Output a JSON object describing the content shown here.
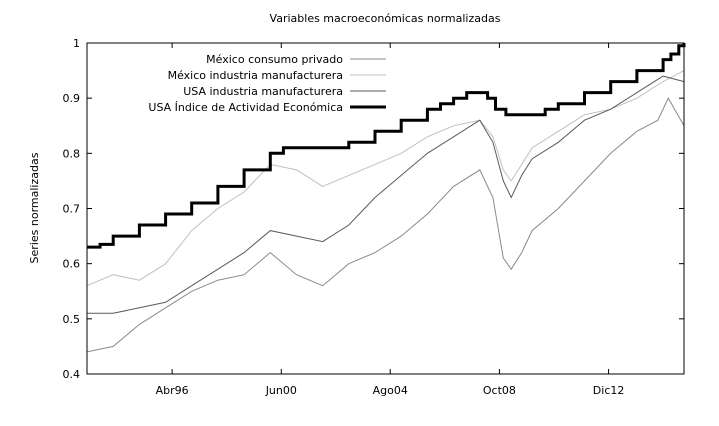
{
  "chart_data": {
    "type": "line",
    "title": "Variables macroeconómicas normalizadas",
    "xlabel": "",
    "ylabel": "Series normalizadas",
    "xlim": [
      1993.0,
      2015.8
    ],
    "ylim": [
      0.4,
      1.0
    ],
    "x_ticks": [
      {
        "label": "Abr96",
        "value": 1996.25
      },
      {
        "label": "Jun00",
        "value": 2000.42
      },
      {
        "label": "Ago04",
        "value": 2004.58
      },
      {
        "label": "Oct08",
        "value": 2008.75
      },
      {
        "label": "Dic12",
        "value": 2012.92
      }
    ],
    "y_ticks": [
      0.4,
      0.5,
      0.6,
      0.7,
      0.8,
      0.9,
      1.0
    ],
    "grid": false,
    "legend_position": "top-left",
    "series": [
      {
        "name": "México consumo privado",
        "color": "#8a8a8a",
        "stroke_width": 1,
        "x": [
          1993.0,
          1994.0,
          1995.0,
          1996.0,
          1997.0,
          1998.0,
          1999.0,
          2000.0,
          2001.0,
          2002.0,
          2003.0,
          2004.0,
          2005.0,
          2006.0,
          2007.0,
          2008.0,
          2008.5,
          2008.9,
          2009.2,
          2009.6,
          2010.0,
          2011.0,
          2012.0,
          2013.0,
          2014.0,
          2014.8,
          2015.2,
          2015.8
        ],
        "y": [
          0.44,
          0.45,
          0.49,
          0.52,
          0.55,
          0.57,
          0.58,
          0.62,
          0.58,
          0.56,
          0.6,
          0.62,
          0.65,
          0.69,
          0.74,
          0.77,
          0.72,
          0.61,
          0.59,
          0.62,
          0.66,
          0.7,
          0.75,
          0.8,
          0.84,
          0.86,
          0.9,
          0.85
        ]
      },
      {
        "name": "México industria manufacturera",
        "color": "#c0c0c0",
        "stroke_width": 1,
        "x": [
          1993.0,
          1994.0,
          1995.0,
          1996.0,
          1997.0,
          1998.0,
          1999.0,
          2000.0,
          2001.0,
          2002.0,
          2003.0,
          2004.0,
          2005.0,
          2006.0,
          2007.0,
          2008.0,
          2008.5,
          2008.9,
          2009.2,
          2009.6,
          2010.0,
          2011.0,
          2012.0,
          2013.0,
          2014.0,
          2015.0,
          2015.8
        ],
        "y": [
          0.56,
          0.58,
          0.57,
          0.6,
          0.66,
          0.7,
          0.73,
          0.78,
          0.77,
          0.74,
          0.76,
          0.78,
          0.8,
          0.83,
          0.85,
          0.86,
          0.83,
          0.77,
          0.75,
          0.78,
          0.81,
          0.84,
          0.87,
          0.88,
          0.9,
          0.93,
          0.95
        ]
      },
      {
        "name": "USA industria manufacturera",
        "color": "#5a5a5a",
        "stroke_width": 1,
        "x": [
          1993.0,
          1994.0,
          1995.0,
          1996.0,
          1997.0,
          1998.0,
          1999.0,
          2000.0,
          2001.0,
          2002.0,
          2003.0,
          2004.0,
          2005.0,
          2006.0,
          2007.0,
          2008.0,
          2008.5,
          2008.9,
          2009.2,
          2009.6,
          2010.0,
          2011.0,
          2012.0,
          2013.0,
          2014.0,
          2015.0,
          2015.8
        ],
        "y": [
          0.51,
          0.51,
          0.52,
          0.53,
          0.56,
          0.59,
          0.62,
          0.66,
          0.65,
          0.64,
          0.67,
          0.72,
          0.76,
          0.8,
          0.83,
          0.86,
          0.82,
          0.75,
          0.72,
          0.76,
          0.79,
          0.82,
          0.86,
          0.88,
          0.91,
          0.94,
          0.93
        ]
      },
      {
        "name": "USA Índice de Actividad Económica",
        "color": "#000000",
        "stroke_width": 3,
        "step": true,
        "x": [
          1993.0,
          1993.5,
          1994.0,
          1995.0,
          1996.0,
          1997.0,
          1998.0,
          1999.0,
          2000.0,
          2000.5,
          2001.0,
          2002.0,
          2003.0,
          2004.0,
          2005.0,
          2006.0,
          2006.5,
          2007.0,
          2007.5,
          2008.0,
          2008.3,
          2008.6,
          2009.0,
          2009.5,
          2010.0,
          2010.5,
          2011.0,
          2012.0,
          2013.0,
          2014.0,
          2015.0,
          2015.3,
          2015.6,
          2015.8
        ],
        "y": [
          0.63,
          0.635,
          0.65,
          0.67,
          0.69,
          0.71,
          0.74,
          0.77,
          0.8,
          0.81,
          0.81,
          0.81,
          0.82,
          0.84,
          0.86,
          0.88,
          0.89,
          0.9,
          0.91,
          0.91,
          0.9,
          0.88,
          0.87,
          0.87,
          0.87,
          0.88,
          0.89,
          0.91,
          0.93,
          0.95,
          0.97,
          0.98,
          0.995,
          1.0
        ]
      }
    ]
  }
}
